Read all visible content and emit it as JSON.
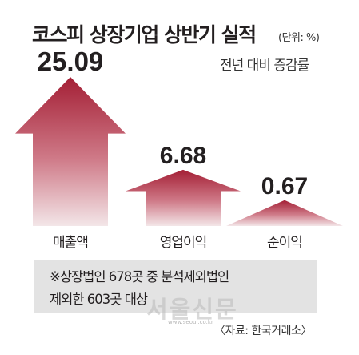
{
  "header": {
    "title": "코스피 상장기업 상반기 실적",
    "unit": "(단위: %)",
    "subtitle": "전년 대비 증감률"
  },
  "colors": {
    "arrow_top": "#a41f35",
    "arrow_bottom": "#f3e6e8",
    "note_background": "#e3e3e3"
  },
  "chart_data": {
    "type": "bar",
    "style": "upward-arrow",
    "categories": [
      "매출액",
      "영업이익",
      "순이익"
    ],
    "values": [
      25.09,
      6.68,
      0.67
    ],
    "value_labels": [
      "25.09",
      "6.68",
      "0.67"
    ],
    "title": "코스피 상장기업 상반기 실적",
    "unit": "%",
    "xlabel": "",
    "ylabel": "",
    "grid": false
  },
  "note": {
    "line1": "※상장법인 678곳 중 분석제외법인",
    "line2": "제외한 603곳 대상"
  },
  "watermark": {
    "logo_text": "서울신문",
    "url": "www.seoul.co.kr"
  },
  "source": "〈자료: 한국거래소〉"
}
